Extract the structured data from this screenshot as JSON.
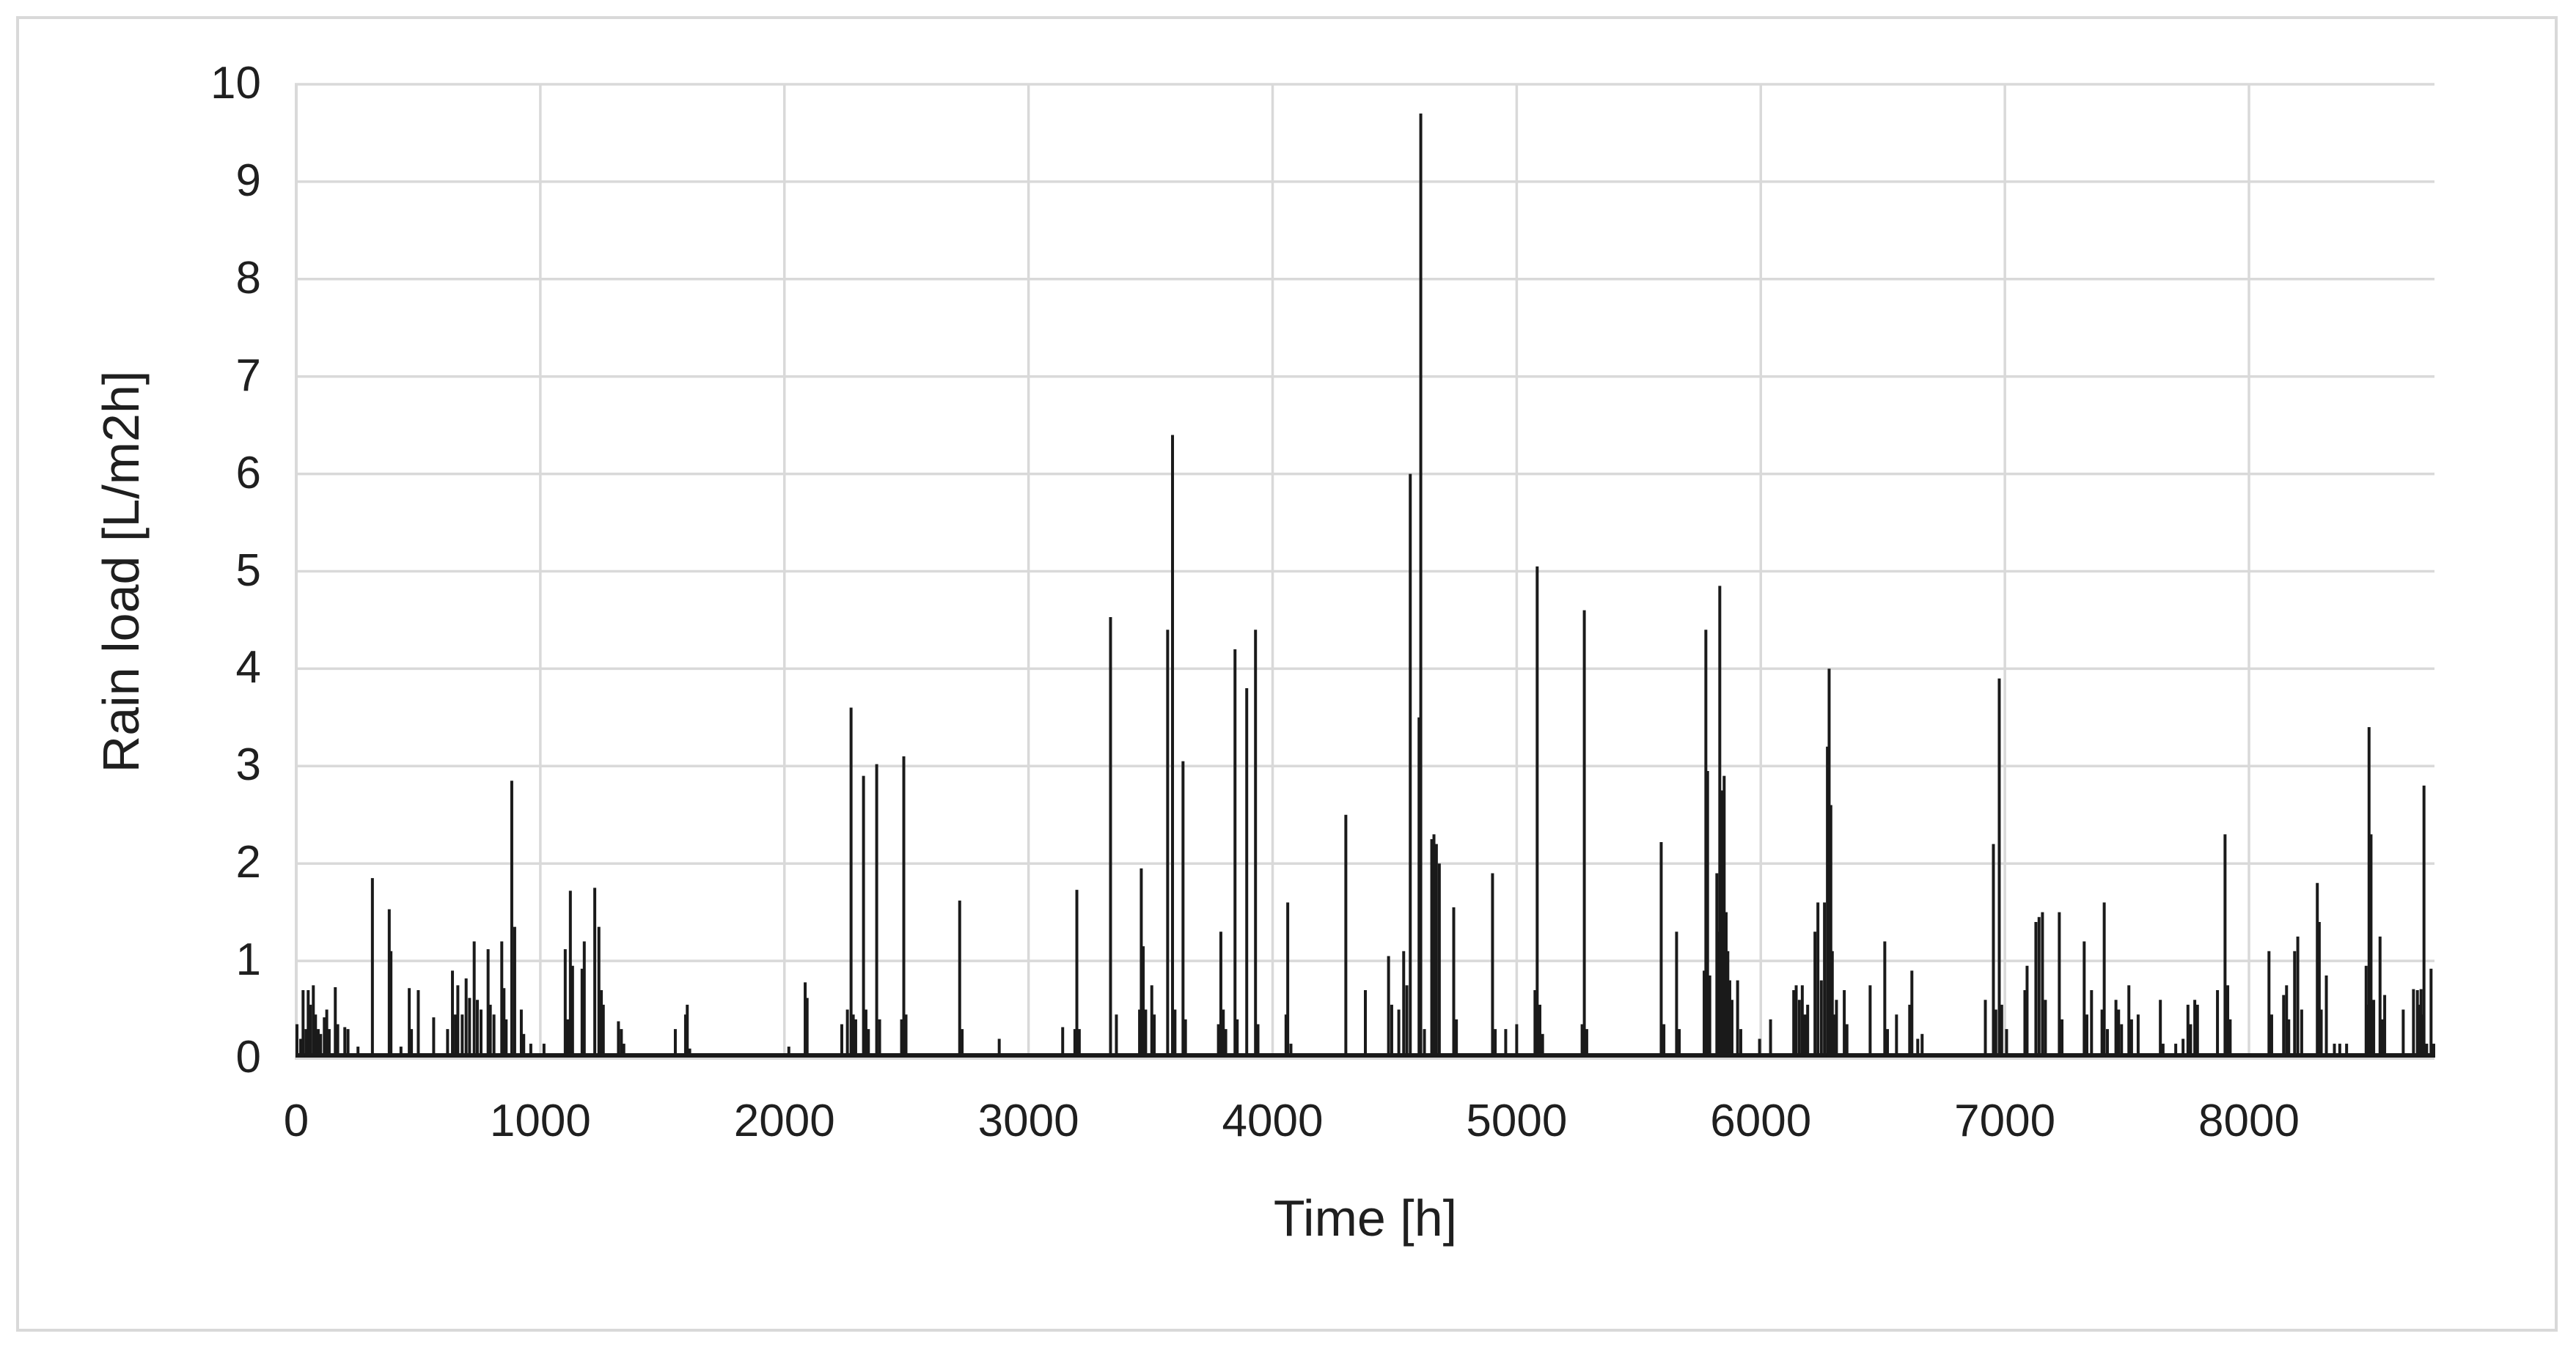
{
  "chart_data": {
    "type": "bar",
    "title": "",
    "xlabel": "Time [h]",
    "ylabel": "Rain load [L/m2h]",
    "xlim": [
      0,
      8760
    ],
    "ylim": [
      0,
      10
    ],
    "x_ticks": [
      0,
      1000,
      2000,
      3000,
      4000,
      5000,
      6000,
      7000,
      8000
    ],
    "y_ticks": [
      0,
      1,
      2,
      3,
      4,
      5,
      6,
      7,
      8,
      9,
      10
    ],
    "grid": true,
    "legend": "none",
    "grid_color": "#d9d9d9",
    "series_color": "#1a1a1a",
    "text_color": "#1f1f1f",
    "background_color": "#ffffff",
    "series_name": "rain-load-hourly",
    "points": [
      [
        3,
        0.35
      ],
      [
        18,
        0.2
      ],
      [
        28,
        0.7
      ],
      [
        40,
        0.3
      ],
      [
        49,
        0.7
      ],
      [
        58,
        0.55
      ],
      [
        70,
        0.75
      ],
      [
        79,
        0.45
      ],
      [
        90,
        0.3
      ],
      [
        100,
        0.25
      ],
      [
        115,
        0.42
      ],
      [
        125,
        0.5
      ],
      [
        135,
        0.3
      ],
      [
        160,
        0.73
      ],
      [
        170,
        0.35
      ],
      [
        199,
        0.32
      ],
      [
        212,
        0.3
      ],
      [
        253,
        0.12
      ],
      [
        312,
        1.85
      ],
      [
        381,
        1.53
      ],
      [
        388,
        1.1
      ],
      [
        429,
        0.12
      ],
      [
        463,
        0.72
      ],
      [
        472,
        0.3
      ],
      [
        500,
        0.7
      ],
      [
        563,
        0.42
      ],
      [
        620,
        0.3
      ],
      [
        640,
        0.9
      ],
      [
        652,
        0.45
      ],
      [
        662,
        0.75
      ],
      [
        680,
        0.45
      ],
      [
        696,
        0.82
      ],
      [
        710,
        0.62
      ],
      [
        729,
        1.2
      ],
      [
        742,
        0.6
      ],
      [
        757,
        0.5
      ],
      [
        786,
        1.12
      ],
      [
        795,
        0.55
      ],
      [
        810,
        0.45
      ],
      [
        842,
        1.2
      ],
      [
        851,
        0.72
      ],
      [
        860,
        0.4
      ],
      [
        883,
        2.85
      ],
      [
        895,
        1.35
      ],
      [
        922,
        0.5
      ],
      [
        932,
        0.25
      ],
      [
        961,
        0.15
      ],
      [
        1015,
        0.15
      ],
      [
        1102,
        1.12
      ],
      [
        1112,
        0.4
      ],
      [
        1123,
        1.72
      ],
      [
        1132,
        0.95
      ],
      [
        1171,
        0.92
      ],
      [
        1180,
        1.2
      ],
      [
        1223,
        1.75
      ],
      [
        1240,
        1.35
      ],
      [
        1250,
        0.7
      ],
      [
        1258,
        0.55
      ],
      [
        1320,
        0.38
      ],
      [
        1332,
        0.3
      ],
      [
        1342,
        0.15
      ],
      [
        1553,
        0.3
      ],
      [
        1595,
        0.45
      ],
      [
        1602,
        0.55
      ],
      [
        1612,
        0.1
      ],
      [
        2018,
        0.12
      ],
      [
        2085,
        0.78
      ],
      [
        2093,
        0.62
      ],
      [
        2235,
        0.35
      ],
      [
        2258,
        0.5
      ],
      [
        2273,
        3.6
      ],
      [
        2282,
        0.45
      ],
      [
        2292,
        0.4
      ],
      [
        2324,
        2.9
      ],
      [
        2334,
        0.5
      ],
      [
        2344,
        0.3
      ],
      [
        2378,
        3.02
      ],
      [
        2390,
        0.4
      ],
      [
        2480,
        0.4
      ],
      [
        2489,
        3.1
      ],
      [
        2498,
        0.45
      ],
      [
        2718,
        1.62
      ],
      [
        2728,
        0.3
      ],
      [
        2880,
        0.2
      ],
      [
        3140,
        0.32
      ],
      [
        3190,
        0.3
      ],
      [
        3198,
        1.73
      ],
      [
        3208,
        0.3
      ],
      [
        3336,
        4.53
      ],
      [
        3360,
        0.45
      ],
      [
        3455,
        0.5
      ],
      [
        3462,
        1.95
      ],
      [
        3470,
        1.15
      ],
      [
        3480,
        0.5
      ],
      [
        3505,
        0.75
      ],
      [
        3515,
        0.45
      ],
      [
        3570,
        4.4
      ],
      [
        3590,
        6.4
      ],
      [
        3600,
        0.5
      ],
      [
        3633,
        3.05
      ],
      [
        3643,
        0.4
      ],
      [
        3778,
        0.35
      ],
      [
        3788,
        1.3
      ],
      [
        3798,
        0.5
      ],
      [
        3808,
        0.3
      ],
      [
        3846,
        4.2
      ],
      [
        3855,
        0.4
      ],
      [
        3894,
        3.8
      ],
      [
        3930,
        4.4
      ],
      [
        3940,
        0.35
      ],
      [
        4055,
        0.45
      ],
      [
        4062,
        1.6
      ],
      [
        4075,
        0.15
      ],
      [
        4300,
        2.5
      ],
      [
        4380,
        0.7
      ],
      [
        4475,
        1.05
      ],
      [
        4488,
        0.55
      ],
      [
        4517,
        0.5
      ],
      [
        4537,
        1.1
      ],
      [
        4550,
        0.75
      ],
      [
        4564,
        6.0
      ],
      [
        4600,
        3.5
      ],
      [
        4607,
        9.7
      ],
      [
        4622,
        0.3
      ],
      [
        4652,
        2.25
      ],
      [
        4661,
        2.3
      ],
      [
        4671,
        2.2
      ],
      [
        4683,
        2.0
      ],
      [
        4742,
        1.55
      ],
      [
        4753,
        0.4
      ],
      [
        4901,
        1.9
      ],
      [
        4912,
        0.3
      ],
      [
        4955,
        0.3
      ],
      [
        5000,
        0.35
      ],
      [
        5075,
        0.7
      ],
      [
        5084,
        5.05
      ],
      [
        5095,
        0.55
      ],
      [
        5106,
        0.25
      ],
      [
        5268,
        0.35
      ],
      [
        5277,
        4.6
      ],
      [
        5287,
        0.3
      ],
      [
        5592,
        2.22
      ],
      [
        5603,
        0.35
      ],
      [
        5655,
        1.3
      ],
      [
        5666,
        0.3
      ],
      [
        5768,
        0.9
      ],
      [
        5775,
        4.4
      ],
      [
        5782,
        2.95
      ],
      [
        5791,
        0.85
      ],
      [
        5820,
        1.9
      ],
      [
        5827,
        1.3
      ],
      [
        5832,
        4.85
      ],
      [
        5843,
        2.75
      ],
      [
        5850,
        2.9
      ],
      [
        5858,
        1.5
      ],
      [
        5865,
        1.1
      ],
      [
        5873,
        0.8
      ],
      [
        5882,
        0.6
      ],
      [
        5905,
        0.8
      ],
      [
        5918,
        0.3
      ],
      [
        5995,
        0.2
      ],
      [
        6040,
        0.4
      ],
      [
        6135,
        0.7
      ],
      [
        6145,
        0.75
      ],
      [
        6158,
        0.6
      ],
      [
        6170,
        0.75
      ],
      [
        6181,
        0.45
      ],
      [
        6192,
        0.55
      ],
      [
        6222,
        1.3
      ],
      [
        6234,
        1.6
      ],
      [
        6248,
        0.8
      ],
      [
        6261,
        1.6
      ],
      [
        6273,
        3.2
      ],
      [
        6280,
        4.0
      ],
      [
        6287,
        2.6
      ],
      [
        6293,
        1.1
      ],
      [
        6301,
        0.45
      ],
      [
        6310,
        0.6
      ],
      [
        6342,
        0.7
      ],
      [
        6353,
        0.35
      ],
      [
        6448,
        0.75
      ],
      [
        6508,
        1.2
      ],
      [
        6519,
        0.3
      ],
      [
        6556,
        0.45
      ],
      [
        6610,
        0.55
      ],
      [
        6619,
        0.9
      ],
      [
        6643,
        0.2
      ],
      [
        6661,
        0.25
      ],
      [
        6920,
        0.6
      ],
      [
        6953,
        2.2
      ],
      [
        6963,
        0.5
      ],
      [
        6977,
        3.9
      ],
      [
        6987,
        0.55
      ],
      [
        7007,
        0.3
      ],
      [
        7082,
        0.7
      ],
      [
        7091,
        0.95
      ],
      [
        7127,
        1.4
      ],
      [
        7140,
        1.45
      ],
      [
        7154,
        1.5
      ],
      [
        7166,
        0.6
      ],
      [
        7223,
        1.5
      ],
      [
        7234,
        0.4
      ],
      [
        7325,
        1.2
      ],
      [
        7336,
        0.45
      ],
      [
        7355,
        0.7
      ],
      [
        7398,
        0.5
      ],
      [
        7407,
        1.6
      ],
      [
        7420,
        0.3
      ],
      [
        7455,
        0.6
      ],
      [
        7466,
        0.5
      ],
      [
        7478,
        0.35
      ],
      [
        7508,
        0.75
      ],
      [
        7519,
        0.4
      ],
      [
        7546,
        0.45
      ],
      [
        7637,
        0.6
      ],
      [
        7648,
        0.15
      ],
      [
        7700,
        0.15
      ],
      [
        7730,
        0.2
      ],
      [
        7750,
        0.55
      ],
      [
        7761,
        0.35
      ],
      [
        7778,
        0.6
      ],
      [
        7789,
        0.55
      ],
      [
        7871,
        0.7
      ],
      [
        7902,
        2.3
      ],
      [
        7913,
        0.75
      ],
      [
        7923,
        0.4
      ],
      [
        8082,
        1.1
      ],
      [
        8093,
        0.45
      ],
      [
        8142,
        0.65
      ],
      [
        8154,
        0.75
      ],
      [
        8163,
        0.4
      ],
      [
        8187,
        1.1
      ],
      [
        8200,
        1.25
      ],
      [
        8216,
        0.5
      ],
      [
        8280,
        1.8
      ],
      [
        8288,
        1.4
      ],
      [
        8296,
        0.5
      ],
      [
        8317,
        0.85
      ],
      [
        8350,
        0.15
      ],
      [
        8372,
        0.15
      ],
      [
        8400,
        0.15
      ],
      [
        8480,
        0.95
      ],
      [
        8488,
        0.55
      ],
      [
        8492,
        3.4
      ],
      [
        8500,
        2.3
      ],
      [
        8511,
        0.6
      ],
      [
        8537,
        1.25
      ],
      [
        8547,
        0.4
      ],
      [
        8556,
        0.65
      ],
      [
        8632,
        0.5
      ],
      [
        8674,
        0.71
      ],
      [
        8690,
        0.7
      ],
      [
        8698,
        0.55
      ],
      [
        8705,
        0.71
      ],
      [
        8713,
        0.45
      ],
      [
        8717,
        2.8
      ],
      [
        8728,
        0.15
      ],
      [
        8746,
        0.92
      ],
      [
        8757,
        0.15
      ]
    ]
  }
}
